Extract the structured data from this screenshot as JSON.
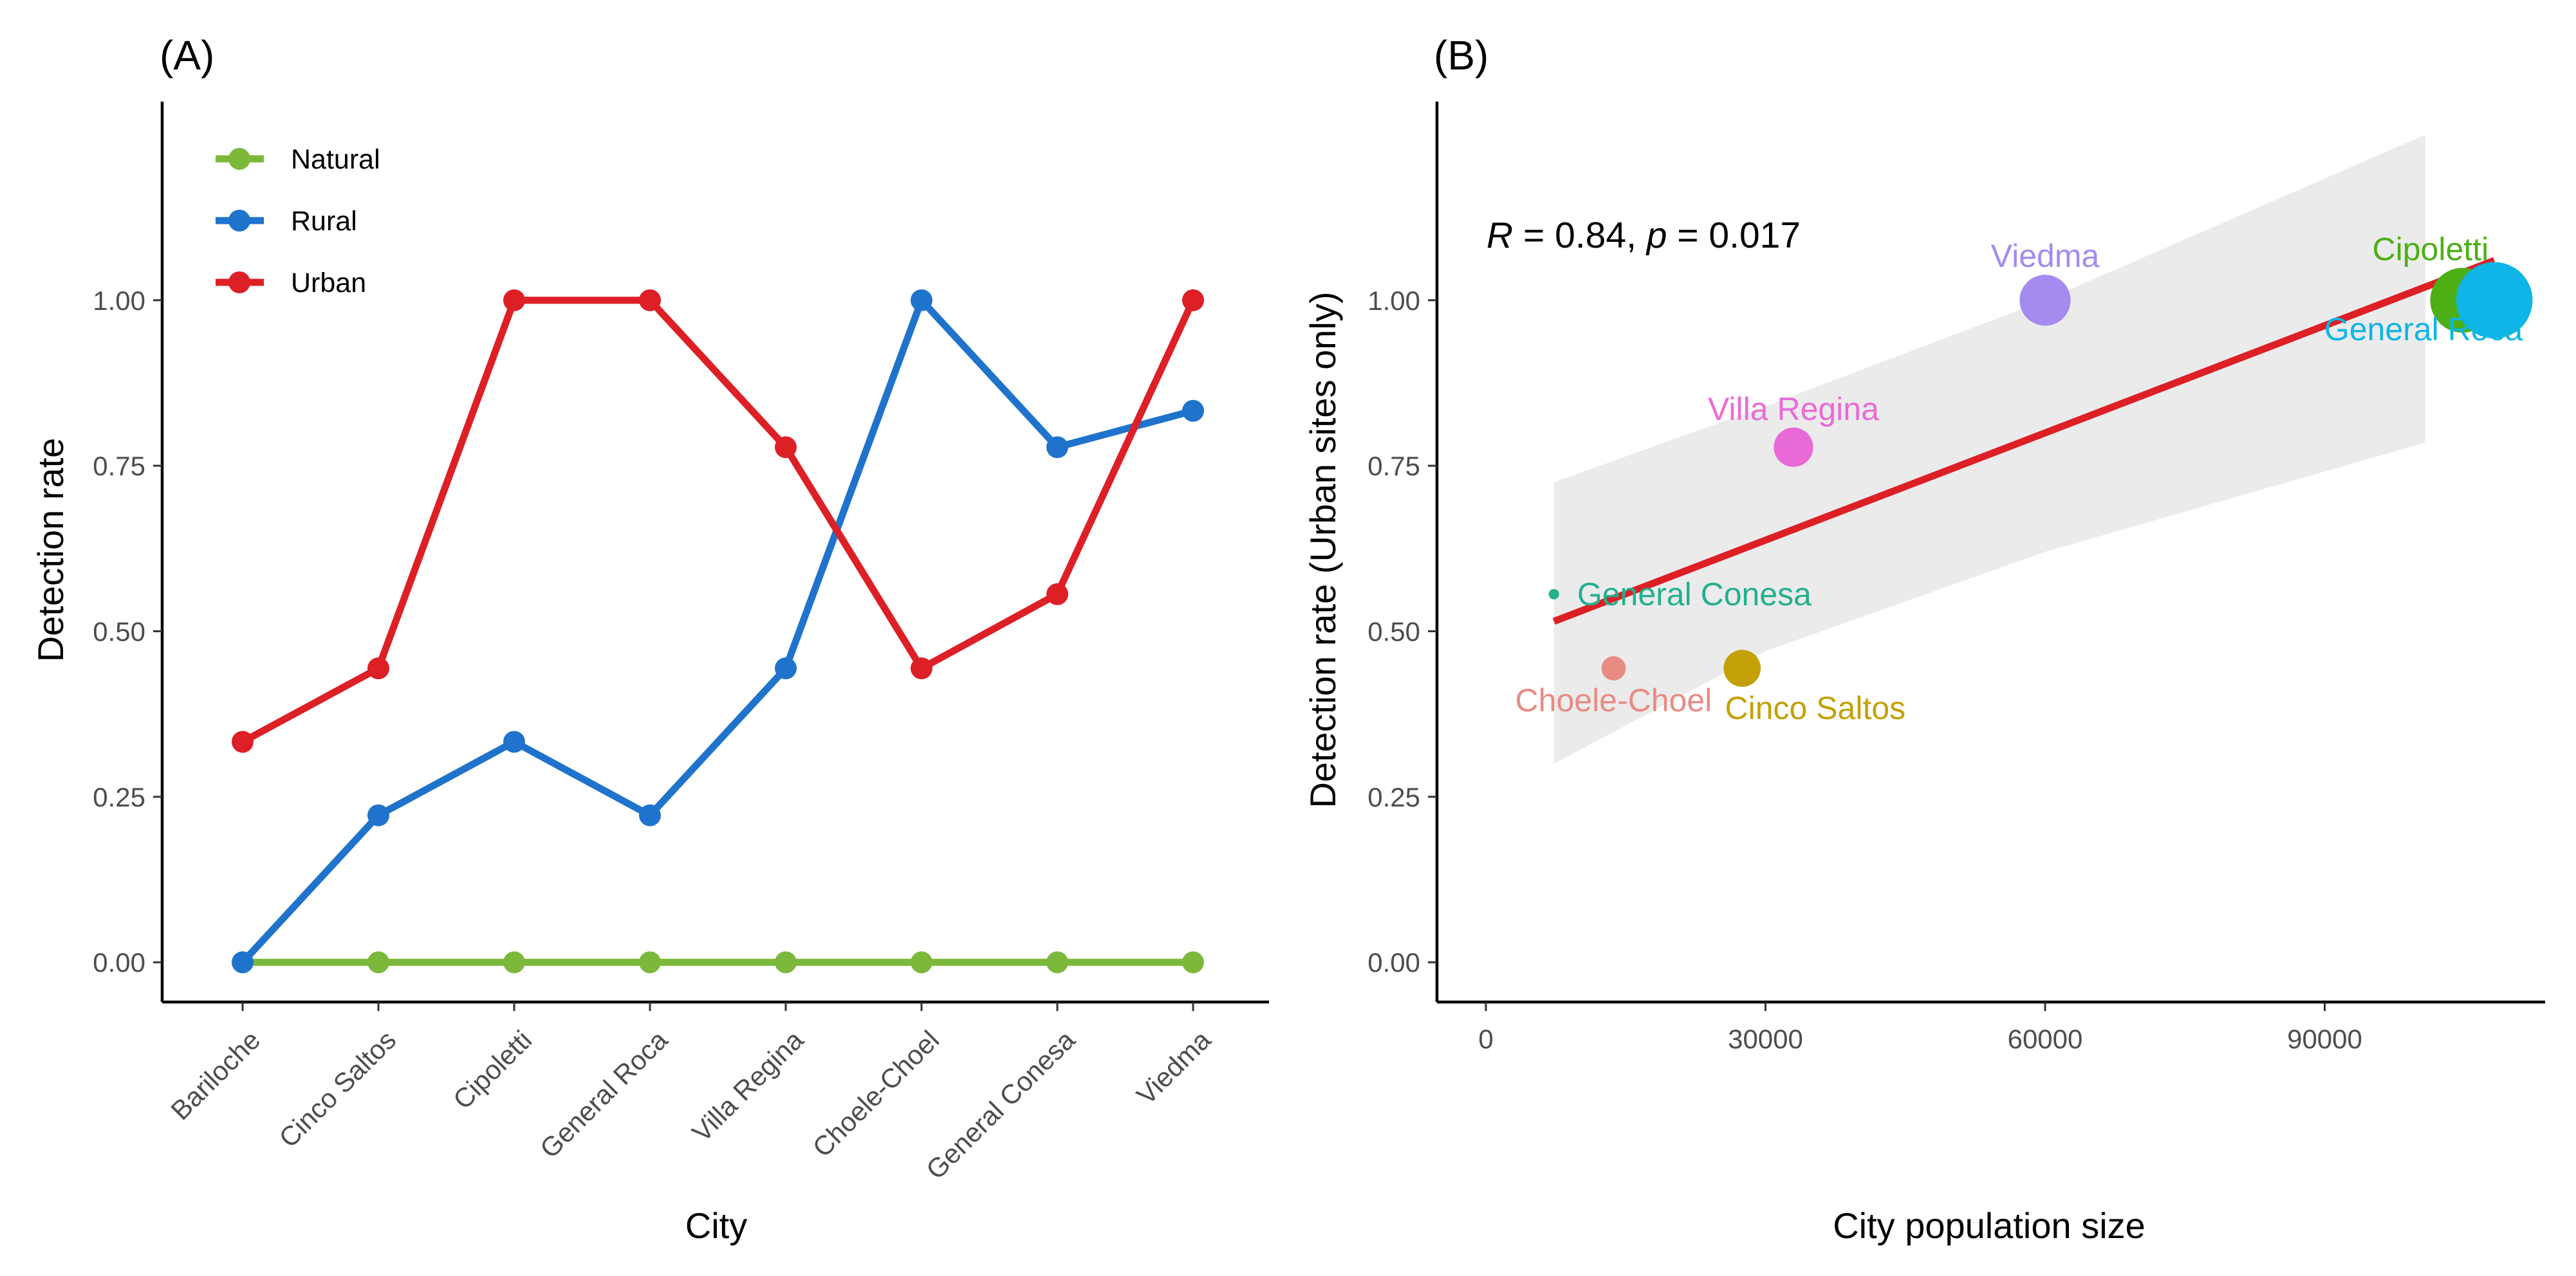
{
  "chart_data": [
    {
      "panel": "(A)",
      "type": "line",
      "title": "",
      "xlabel": "City",
      "ylabel": "Detection rate",
      "categories": [
        "Bariloche",
        "Cinco Saltos",
        "Cipoletti",
        "General Roca",
        "Villa Regina",
        "Choele-Choel",
        "General Conesa",
        "Viedma"
      ],
      "ylim": [
        -0.06,
        1.3
      ],
      "yticks": [
        0,
        0.25,
        0.5,
        0.75,
        1
      ],
      "ytick_labels": [
        "0.00",
        "0.25",
        "0.50",
        "0.75",
        "1.00"
      ],
      "legend_position": "top-left",
      "grid": false,
      "series": [
        {
          "name": "Natural",
          "color": "#7cb93b",
          "values": [
            0,
            0,
            0,
            0,
            0,
            0,
            0,
            0
          ]
        },
        {
          "name": "Rural",
          "color": "#1f73cc",
          "values": [
            0,
            0.222,
            0.333,
            0.222,
            0.444,
            1.0,
            0.778,
            0.833
          ]
        },
        {
          "name": "Urban",
          "color": "#dd1f26",
          "values": [
            0.333,
            0.444,
            1.0,
            1.0,
            0.778,
            0.444,
            0.556,
            1.0
          ]
        }
      ]
    },
    {
      "panel": "(B)",
      "type": "scatter",
      "title": "",
      "xlabel": "City population size",
      "ylabel": "Detection rate (Urban sites only)",
      "xlim": [
        -4000,
        117000
      ],
      "ylim": [
        -0.06,
        1.3
      ],
      "xticks": [
        0,
        30000,
        60000,
        90000
      ],
      "xtick_labels": [
        "0",
        "30000",
        "60000",
        "90000"
      ],
      "yticks": [
        0,
        0.25,
        0.5,
        0.75,
        1
      ],
      "ytick_labels": [
        "0.00",
        "0.25",
        "0.50",
        "0.75",
        "1.00"
      ],
      "grid": false,
      "annotation": {
        "r_label": "R",
        "r_value": " = 0.84, ",
        "p_label": "p",
        "p_value": " = 0.017"
      },
      "points": [
        {
          "label": "Cipoletti",
          "x": 104800,
          "y": 1.0,
          "color": "#4caf15",
          "size": 2.8,
          "label_anchor": "middle",
          "label_pos": "above"
        },
        {
          "label": "General Roca",
          "x": 108200,
          "y": 1.0,
          "color": "#0fb5e6",
          "size": 3.3,
          "label_anchor": "middle",
          "label_pos": "below"
        },
        {
          "label": "Viedma",
          "x": 60000,
          "y": 1.0,
          "color": "#a48bf0",
          "size": 2.2,
          "label_anchor": "middle",
          "label_pos": "above"
        },
        {
          "label": "Villa Regina",
          "x": 33000,
          "y": 0.778,
          "color": "#e96ad7",
          "size": 1.7,
          "label_anchor": "middle",
          "label_pos": "above"
        },
        {
          "label": "General Conesa",
          "x": 7300,
          "y": 0.556,
          "color": "#22b08f",
          "size": 0.45,
          "label_anchor": "start",
          "label_pos": "right"
        },
        {
          "label": "Choele-Choel",
          "x": 13700,
          "y": 0.444,
          "color": "#e88b83",
          "size": 1.05,
          "label_anchor": "middle",
          "label_pos": "below"
        },
        {
          "label": "Cinco Saltos",
          "x": 27500,
          "y": 0.444,
          "color": "#c4a007",
          "size": 1.6,
          "label_anchor": "start",
          "label_pos": "below-right"
        }
      ],
      "fit": {
        "x0": 7300,
        "x1": 108200,
        "y0": 0.515,
        "y1": 1.06,
        "color": "#dd1f26"
      },
      "confidence_band": {
        "x": [
          7300,
          30000,
          60000,
          100800
        ],
        "upper": [
          0.725,
          0.84,
          1.0,
          1.25
        ],
        "lower": [
          0.3,
          0.47,
          0.62,
          0.785
        ],
        "color": "#ebebeb"
      }
    }
  ]
}
